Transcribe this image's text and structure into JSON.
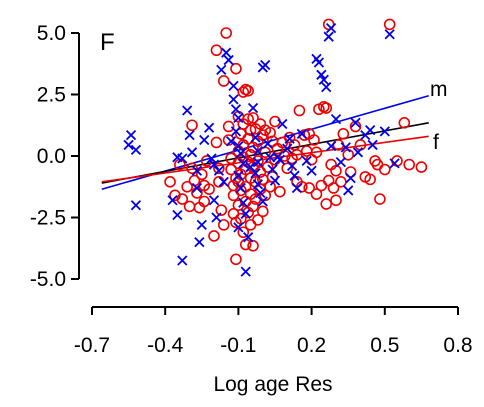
{
  "chart_data": {
    "type": "scatter",
    "panel_label": "F",
    "xlabel": "Log age Res",
    "ylabel": "",
    "xlim": [
      -0.7,
      0.8
    ],
    "ylim": [
      -5.0,
      5.0
    ],
    "x_ticks": [
      -0.7,
      -0.4,
      -0.1,
      0.2,
      0.5,
      0.8
    ],
    "x_tick_labels": [
      "-0.7",
      "-0.4",
      "-0.1",
      "0.2",
      "0.5",
      "0.8"
    ],
    "y_ticks": [
      -5.0,
      -2.5,
      0.0,
      2.5,
      5.0
    ],
    "y_tick_labels": [
      "-5.0",
      "-2.5",
      "0.0",
      "2.5",
      "5.0"
    ],
    "grid": false,
    "series": [
      {
        "name": "m",
        "marker": "x",
        "color": "#0000ee",
        "points": [
          [
            -0.54,
            0.85
          ],
          [
            -0.55,
            0.45
          ],
          [
            -0.52,
            0.25
          ],
          [
            -0.52,
            -2.0
          ],
          [
            -0.35,
            -0.05
          ],
          [
            -0.33,
            -0.1
          ],
          [
            -0.37,
            -1.8
          ],
          [
            -0.35,
            -2.4
          ],
          [
            -0.33,
            -4.25
          ],
          [
            -0.31,
            1.85
          ],
          [
            -0.3,
            0.85
          ],
          [
            -0.29,
            0.15
          ],
          [
            -0.27,
            -0.6
          ],
          [
            -0.27,
            -1.3
          ],
          [
            -0.25,
            -2.8
          ],
          [
            -0.26,
            -3.5
          ],
          [
            -0.24,
            0.65
          ],
          [
            -0.22,
            1.15
          ],
          [
            -0.21,
            -0.1
          ],
          [
            -0.2,
            -0.35
          ],
          [
            -0.2,
            -1.8
          ],
          [
            -0.19,
            -2.5
          ],
          [
            -0.17,
            3.5
          ],
          [
            -0.15,
            4.2
          ],
          [
            -0.14,
            3.9
          ],
          [
            -0.12,
            2.85
          ],
          [
            -0.12,
            2.3
          ],
          [
            -0.11,
            1.9
          ],
          [
            -0.1,
            1.55
          ],
          [
            -0.11,
            1.0
          ],
          [
            -0.1,
            0.4
          ],
          [
            -0.09,
            0.1
          ],
          [
            -0.08,
            -0.3
          ],
          [
            -0.1,
            -0.8
          ],
          [
            -0.09,
            -1.3
          ],
          [
            -0.08,
            -1.9
          ],
          [
            -0.07,
            -2.35
          ],
          [
            -0.1,
            -2.9
          ],
          [
            -0.06,
            -3.3
          ],
          [
            -0.07,
            -4.7
          ],
          [
            -0.04,
            1.95
          ],
          [
            -0.03,
            0.75
          ],
          [
            -0.02,
            0.2
          ],
          [
            -0.02,
            -0.25
          ],
          [
            -0.03,
            -0.7
          ],
          [
            -0.02,
            -1.15
          ],
          [
            -0.01,
            -1.5
          ],
          [
            0.0,
            3.6
          ],
          [
            0.01,
            3.7
          ],
          [
            0.02,
            0.5
          ],
          [
            0.03,
            -0.05
          ],
          [
            0.04,
            -0.55
          ],
          [
            0.05,
            -1.0
          ],
          [
            0.06,
            -0.05
          ],
          [
            0.08,
            1.3
          ],
          [
            0.1,
            0.3
          ],
          [
            0.12,
            -0.4
          ],
          [
            0.14,
            -1.3
          ],
          [
            0.16,
            0.9
          ],
          [
            0.18,
            -0.2
          ],
          [
            0.2,
            -0.6
          ],
          [
            0.22,
            3.95
          ],
          [
            0.23,
            3.8
          ],
          [
            0.24,
            3.3
          ],
          [
            0.25,
            3.1
          ],
          [
            0.26,
            2.8
          ],
          [
            0.27,
            4.85
          ],
          [
            0.28,
            5.2
          ],
          [
            0.28,
            0.4
          ],
          [
            0.3,
            1.5
          ],
          [
            0.32,
            -0.25
          ],
          [
            0.34,
            0.35
          ],
          [
            0.35,
            -1.4
          ],
          [
            0.36,
            -0.9
          ],
          [
            0.38,
            1.35
          ],
          [
            0.39,
            0.15
          ],
          [
            0.42,
            0.85
          ],
          [
            0.44,
            1.05
          ],
          [
            0.45,
            0.45
          ],
          [
            0.5,
            1.0
          ],
          [
            0.52,
            4.95
          ],
          [
            0.54,
            -0.3
          ],
          [
            -0.18,
            -0.6
          ],
          [
            -0.16,
            -1.05
          ],
          [
            0.0,
            -1.85
          ],
          [
            0.07,
            -0.15
          ],
          [
            -0.05,
            -0.45
          ],
          [
            -0.13,
            0.6
          ],
          [
            0.11,
            0.7
          ],
          [
            0.13,
            -0.8
          ]
        ]
      },
      {
        "name": "f",
        "marker": "o",
        "color": "#ee0000",
        "points": [
          [
            -0.38,
            -1.05
          ],
          [
            -0.36,
            -1.6
          ],
          [
            -0.34,
            -0.35
          ],
          [
            -0.33,
            -1.75
          ],
          [
            -0.31,
            -1.25
          ],
          [
            -0.3,
            -2.05
          ],
          [
            -0.29,
            1.25
          ],
          [
            -0.29,
            -0.5
          ],
          [
            -0.28,
            -1.0
          ],
          [
            -0.27,
            -1.5
          ],
          [
            -0.26,
            -2.1
          ],
          [
            -0.25,
            -0.75
          ],
          [
            -0.24,
            -1.2
          ],
          [
            -0.24,
            -1.85
          ],
          [
            -0.23,
            -0.2
          ],
          [
            -0.22,
            -1.35
          ],
          [
            -0.2,
            -3.25
          ],
          [
            -0.19,
            4.3
          ],
          [
            -0.19,
            0.55
          ],
          [
            -0.18,
            -0.5
          ],
          [
            -0.18,
            -1.05
          ],
          [
            -0.17,
            -2.2
          ],
          [
            -0.16,
            3.05
          ],
          [
            -0.16,
            -2.8
          ],
          [
            -0.15,
            5.0
          ],
          [
            -0.14,
            1.2
          ],
          [
            -0.14,
            0.65
          ],
          [
            -0.13,
            -0.1
          ],
          [
            -0.13,
            -0.55
          ],
          [
            -0.12,
            -1.2
          ],
          [
            -0.12,
            -1.6
          ],
          [
            -0.12,
            -2.35
          ],
          [
            -0.11,
            3.55
          ],
          [
            -0.11,
            -0.9
          ],
          [
            -0.11,
            -2.7
          ],
          [
            -0.11,
            -4.2
          ],
          [
            -0.1,
            1.6
          ],
          [
            -0.1,
            0.2
          ],
          [
            -0.1,
            -0.3
          ],
          [
            -0.1,
            -1.05
          ],
          [
            -0.1,
            -2.0
          ],
          [
            -0.09,
            0.9
          ],
          [
            -0.09,
            -0.75
          ],
          [
            -0.09,
            -1.4
          ],
          [
            -0.09,
            -2.55
          ],
          [
            -0.08,
            2.6
          ],
          [
            -0.08,
            1.3
          ],
          [
            -0.08,
            0.45
          ],
          [
            -0.08,
            -0.05
          ],
          [
            -0.08,
            -3.1
          ],
          [
            -0.07,
            2.7
          ],
          [
            -0.07,
            -0.55
          ],
          [
            -0.07,
            -1.25
          ],
          [
            -0.07,
            -1.85
          ],
          [
            -0.07,
            -3.6
          ],
          [
            -0.06,
            2.65
          ],
          [
            -0.06,
            1.5
          ],
          [
            -0.06,
            0.7
          ],
          [
            -0.06,
            -0.25
          ],
          [
            -0.06,
            -2.3
          ],
          [
            -0.05,
            1.05
          ],
          [
            -0.05,
            0.05
          ],
          [
            -0.05,
            -0.9
          ],
          [
            -0.05,
            -1.55
          ],
          [
            -0.05,
            -2.8
          ],
          [
            -0.04,
            1.55
          ],
          [
            -0.04,
            0.35
          ],
          [
            -0.04,
            -0.45
          ],
          [
            -0.04,
            -2.05
          ],
          [
            -0.04,
            -3.65
          ],
          [
            -0.03,
            1.1
          ],
          [
            -0.03,
            -1.05
          ],
          [
            -0.03,
            -1.75
          ],
          [
            -0.02,
            0.6
          ],
          [
            -0.02,
            -0.2
          ],
          [
            -0.02,
            -2.6
          ],
          [
            -0.01,
            1.3
          ],
          [
            -0.01,
            -0.65
          ],
          [
            -0.01,
            -1.35
          ],
          [
            0.0,
            0.85
          ],
          [
            0.0,
            -0.95
          ],
          [
            0.0,
            -2.25
          ],
          [
            0.01,
            1.05
          ],
          [
            0.01,
            0.15
          ],
          [
            0.01,
            -1.6
          ],
          [
            0.02,
            -0.45
          ],
          [
            0.03,
            0.95
          ],
          [
            0.03,
            -1.25
          ],
          [
            0.04,
            0.6
          ],
          [
            0.04,
            -0.85
          ],
          [
            0.05,
            1.4
          ],
          [
            0.05,
            -0.15
          ],
          [
            0.06,
            0.3
          ],
          [
            0.07,
            -1.45
          ],
          [
            0.08,
            0.55
          ],
          [
            0.09,
            0.0
          ],
          [
            0.1,
            -0.5
          ],
          [
            0.11,
            0.75
          ],
          [
            0.12,
            -0.1
          ],
          [
            0.13,
            0.45
          ],
          [
            0.14,
            0.05
          ],
          [
            0.15,
            1.85
          ],
          [
            0.16,
            -1.25
          ],
          [
            0.17,
            0.85
          ],
          [
            0.18,
            0.2
          ],
          [
            0.19,
            0.9
          ],
          [
            0.2,
            -0.15
          ],
          [
            0.21,
            0.65
          ],
          [
            0.22,
            0.15
          ],
          [
            0.23,
            1.9
          ],
          [
            0.24,
            -1.2
          ],
          [
            0.25,
            2.0
          ],
          [
            0.26,
            1.95
          ],
          [
            0.27,
            5.35
          ],
          [
            0.27,
            -1.0
          ],
          [
            0.28,
            -0.35
          ],
          [
            0.29,
            -1.3
          ],
          [
            0.3,
            -0.6
          ],
          [
            0.31,
            0.45
          ],
          [
            0.32,
            -1.05
          ],
          [
            0.33,
            0.9
          ],
          [
            0.35,
            0.05
          ],
          [
            0.36,
            -0.65
          ],
          [
            0.38,
            1.2
          ],
          [
            0.4,
            0.45
          ],
          [
            0.42,
            -0.85
          ],
          [
            0.44,
            -0.95
          ],
          [
            0.46,
            -0.2
          ],
          [
            0.47,
            -0.35
          ],
          [
            0.48,
            -1.75
          ],
          [
            0.5,
            -0.55
          ],
          [
            0.52,
            5.35
          ],
          [
            0.55,
            -0.2
          ],
          [
            0.58,
            1.35
          ],
          [
            0.6,
            -0.35
          ],
          [
            0.65,
            -0.45
          ],
          [
            0.22,
            -1.55
          ],
          [
            0.26,
            -1.95
          ],
          [
            0.3,
            -1.8
          ],
          [
            0.19,
            -1.3
          ],
          [
            0.14,
            -1.05
          ]
        ]
      }
    ],
    "fit_lines": [
      {
        "name": "m",
        "color": "#0000ee",
        "x": [
          -0.66,
          0.68
        ],
        "y": [
          -1.35,
          2.45
        ]
      },
      {
        "name": "",
        "color": "#000000",
        "x": [
          -0.66,
          0.68
        ],
        "y": [
          -1.1,
          1.35
        ]
      },
      {
        "name": "f",
        "color": "#ee0000",
        "x": [
          -0.66,
          0.68
        ],
        "y": [
          -1.05,
          0.8
        ]
      }
    ]
  }
}
